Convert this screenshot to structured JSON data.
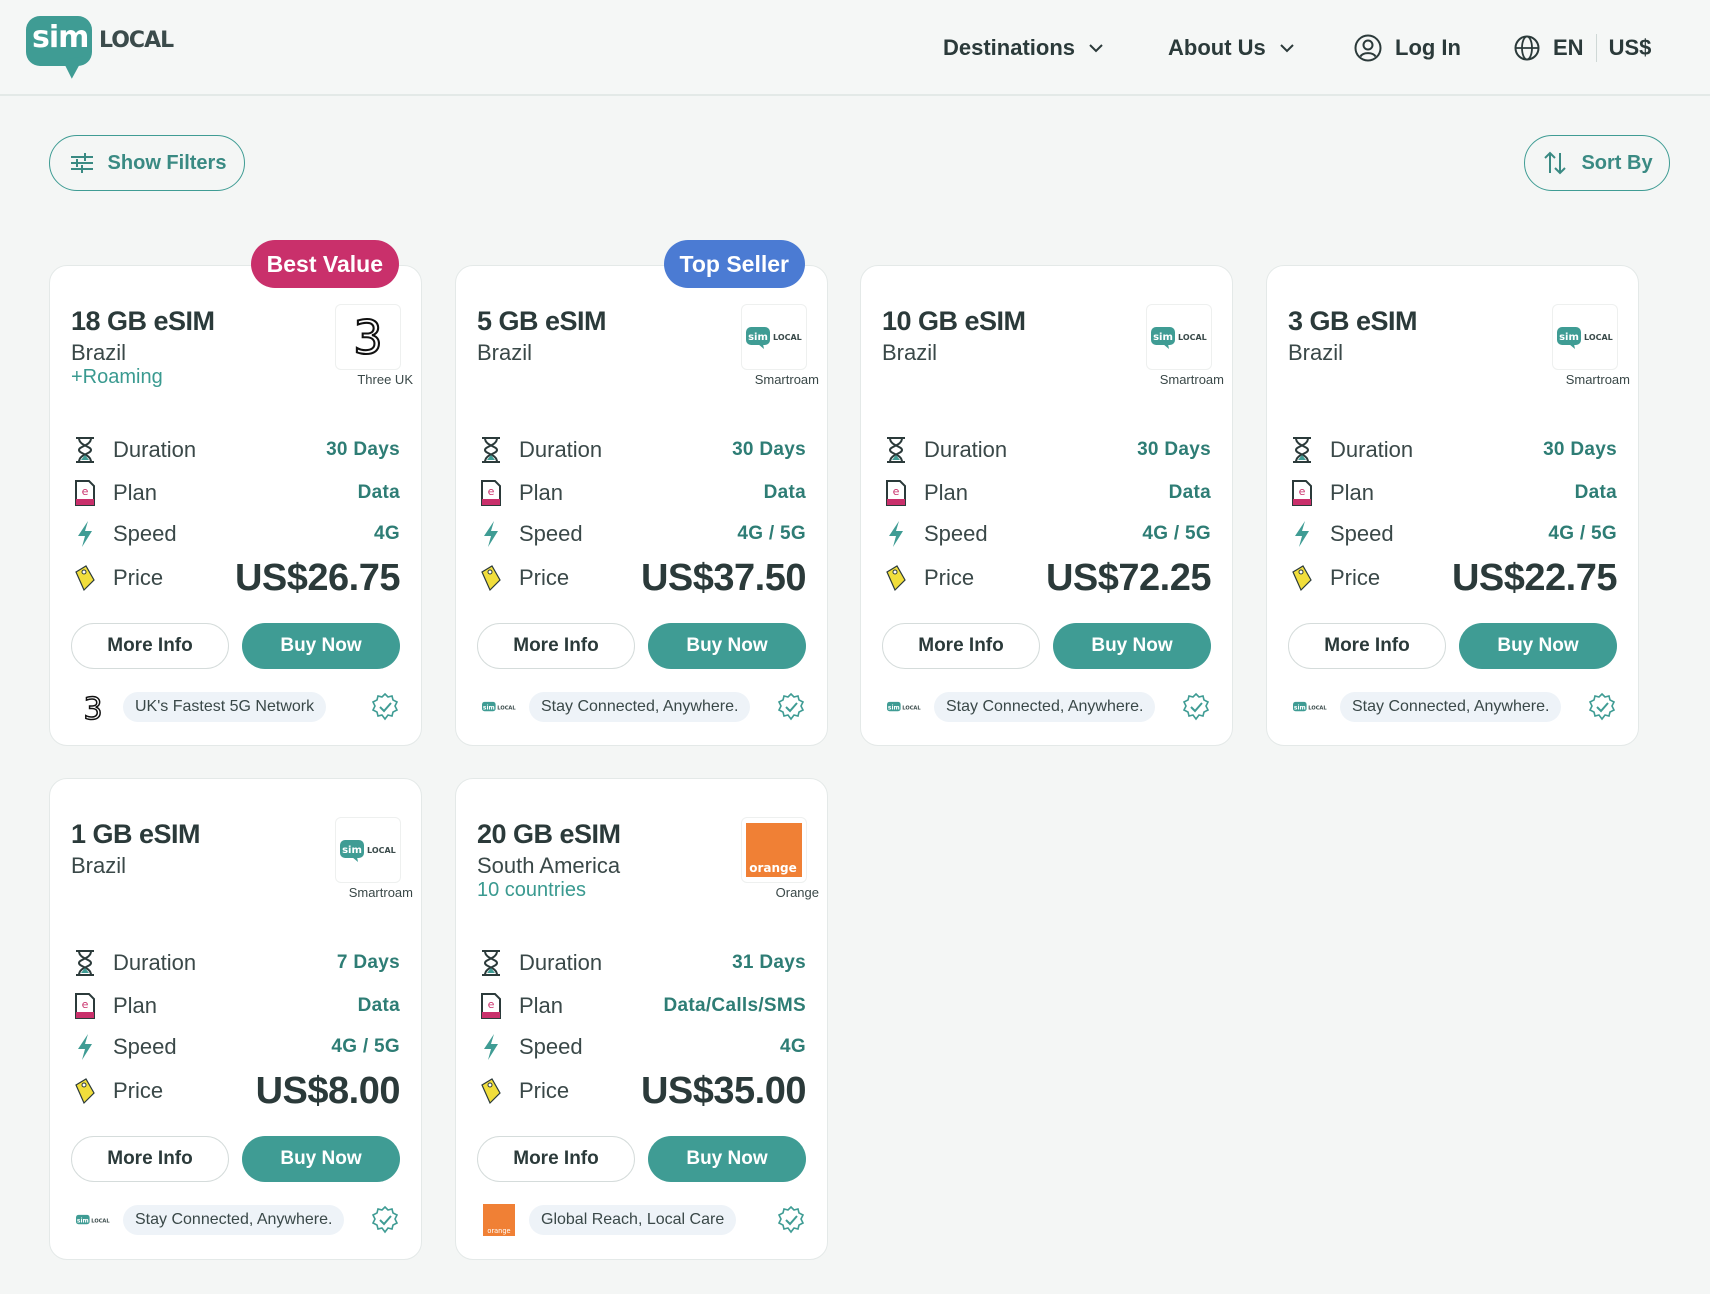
{
  "header": {
    "logo_sim": "sim",
    "logo_local": "LOCAL",
    "nav": {
      "destinations": "Destinations",
      "about": "About Us",
      "login": "Log In",
      "language": "EN",
      "currency": "US$"
    }
  },
  "toolbar": {
    "filters_label": "Show Filters",
    "sort_label": "Sort By"
  },
  "labels": {
    "duration": "Duration",
    "plan": "Plan",
    "speed": "Speed",
    "price": "Price",
    "more_info": "More Info",
    "buy_now": "Buy Now"
  },
  "colors": {
    "brand": "#3f9c94",
    "best_value": "#c9306b",
    "top_seller": "#4b7bd3",
    "orange": "#f08035"
  },
  "cards": [
    {
      "ribbon": "Best Value",
      "title": "18 GB eSIM",
      "country": "Brazil",
      "extra": "+Roaming",
      "operator": "Three UK",
      "operator_logo": "three-uk-logo",
      "duration": "30 Days",
      "plan": "Data",
      "speed": "4G",
      "price": "US$26.75",
      "tagline": "UK's Fastest 5G Network"
    },
    {
      "ribbon": "Top Seller",
      "title": "5 GB eSIM",
      "country": "Brazil",
      "operator": "Smartroam",
      "operator_logo": "simlocal-logo",
      "duration": "30 Days",
      "plan": "Data",
      "speed": "4G / 5G",
      "price": "US$37.50",
      "tagline": "Stay Connected, Anywhere."
    },
    {
      "title": "10 GB eSIM",
      "country": "Brazil",
      "operator": "Smartroam",
      "operator_logo": "simlocal-logo",
      "duration": "30 Days",
      "plan": "Data",
      "speed": "4G / 5G",
      "price": "US$72.25",
      "tagline": "Stay Connected, Anywhere."
    },
    {
      "title": "3 GB eSIM",
      "country": "Brazil",
      "operator": "Smartroam",
      "operator_logo": "simlocal-logo",
      "duration": "30 Days",
      "plan": "Data",
      "speed": "4G / 5G",
      "price": "US$22.75",
      "tagline": "Stay Connected, Anywhere."
    },
    {
      "title": "1 GB eSIM",
      "country": "Brazil",
      "operator": "Smartroam",
      "operator_logo": "simlocal-logo",
      "duration": "7 Days",
      "plan": "Data",
      "speed": "4G / 5G",
      "price": "US$8.00",
      "tagline": "Stay Connected, Anywhere."
    },
    {
      "title": "20 GB eSIM",
      "country": "South America",
      "extra": "10 countries",
      "operator": "Orange",
      "operator_logo": "orange-logo",
      "orange_wordmark": "orange",
      "duration": "31 Days",
      "plan": "Data/Calls/SMS",
      "speed": "4G",
      "price": "US$35.00",
      "tagline": "Global Reach, Local Care"
    }
  ]
}
